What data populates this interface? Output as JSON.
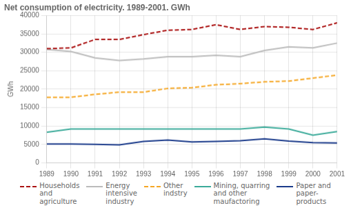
{
  "chart_data": {
    "type": "line",
    "title": "Net consumption of electricity. 1989-2001. GWh",
    "ylabel": "GWh",
    "x": [
      1989,
      1990,
      1991,
      1992,
      1993,
      1994,
      1995,
      1996,
      1997,
      1998,
      1999,
      2000,
      2001
    ],
    "xlim": [
      1989,
      2001
    ],
    "xticks": [
      1989,
      1990,
      1991,
      1992,
      1993,
      1994,
      1995,
      1996,
      1997,
      1998,
      1999,
      2000,
      2001
    ],
    "ylim": [
      0,
      40000
    ],
    "yticks": [
      0,
      5000,
      10000,
      15000,
      20000,
      25000,
      30000,
      35000,
      40000
    ],
    "grid": true,
    "legend": "bottom",
    "series": [
      {
        "name": "Households\nand\nagriculture",
        "color": "#aa1111",
        "line_style": "dashed",
        "values": [
          31000,
          31200,
          33500,
          33500,
          34800,
          36000,
          36200,
          37500,
          36200,
          37000,
          36800,
          36200,
          38000
        ]
      },
      {
        "name": "Energy\nintensive\nindustry",
        "color": "#bbbbbb",
        "line_style": "solid",
        "values": [
          30800,
          30200,
          28500,
          27800,
          28200,
          28800,
          28800,
          29200,
          28800,
          30500,
          31500,
          31200,
          32500
        ]
      },
      {
        "name": "Other\nindstry",
        "color": "#f5a623",
        "line_style": "dashed",
        "values": [
          17800,
          17800,
          18600,
          19200,
          19200,
          20200,
          20400,
          21200,
          21500,
          22000,
          22200,
          23000,
          23800
        ]
      },
      {
        "name": "Mining, quarring\nand other\nmaufactoring",
        "color": "#3aaa99",
        "line_style": "solid",
        "values": [
          8300,
          9200,
          9200,
          9200,
          9200,
          9200,
          9200,
          9200,
          9200,
          9700,
          9200,
          7500,
          8500
        ]
      },
      {
        "name": "Paper and\npaper-\nproducts",
        "color": "#1a3a8a",
        "line_style": "solid",
        "values": [
          5100,
          5100,
          5000,
          4900,
          5800,
          6200,
          5700,
          5800,
          6000,
          6500,
          5900,
          5500,
          5400
        ]
      }
    ]
  }
}
